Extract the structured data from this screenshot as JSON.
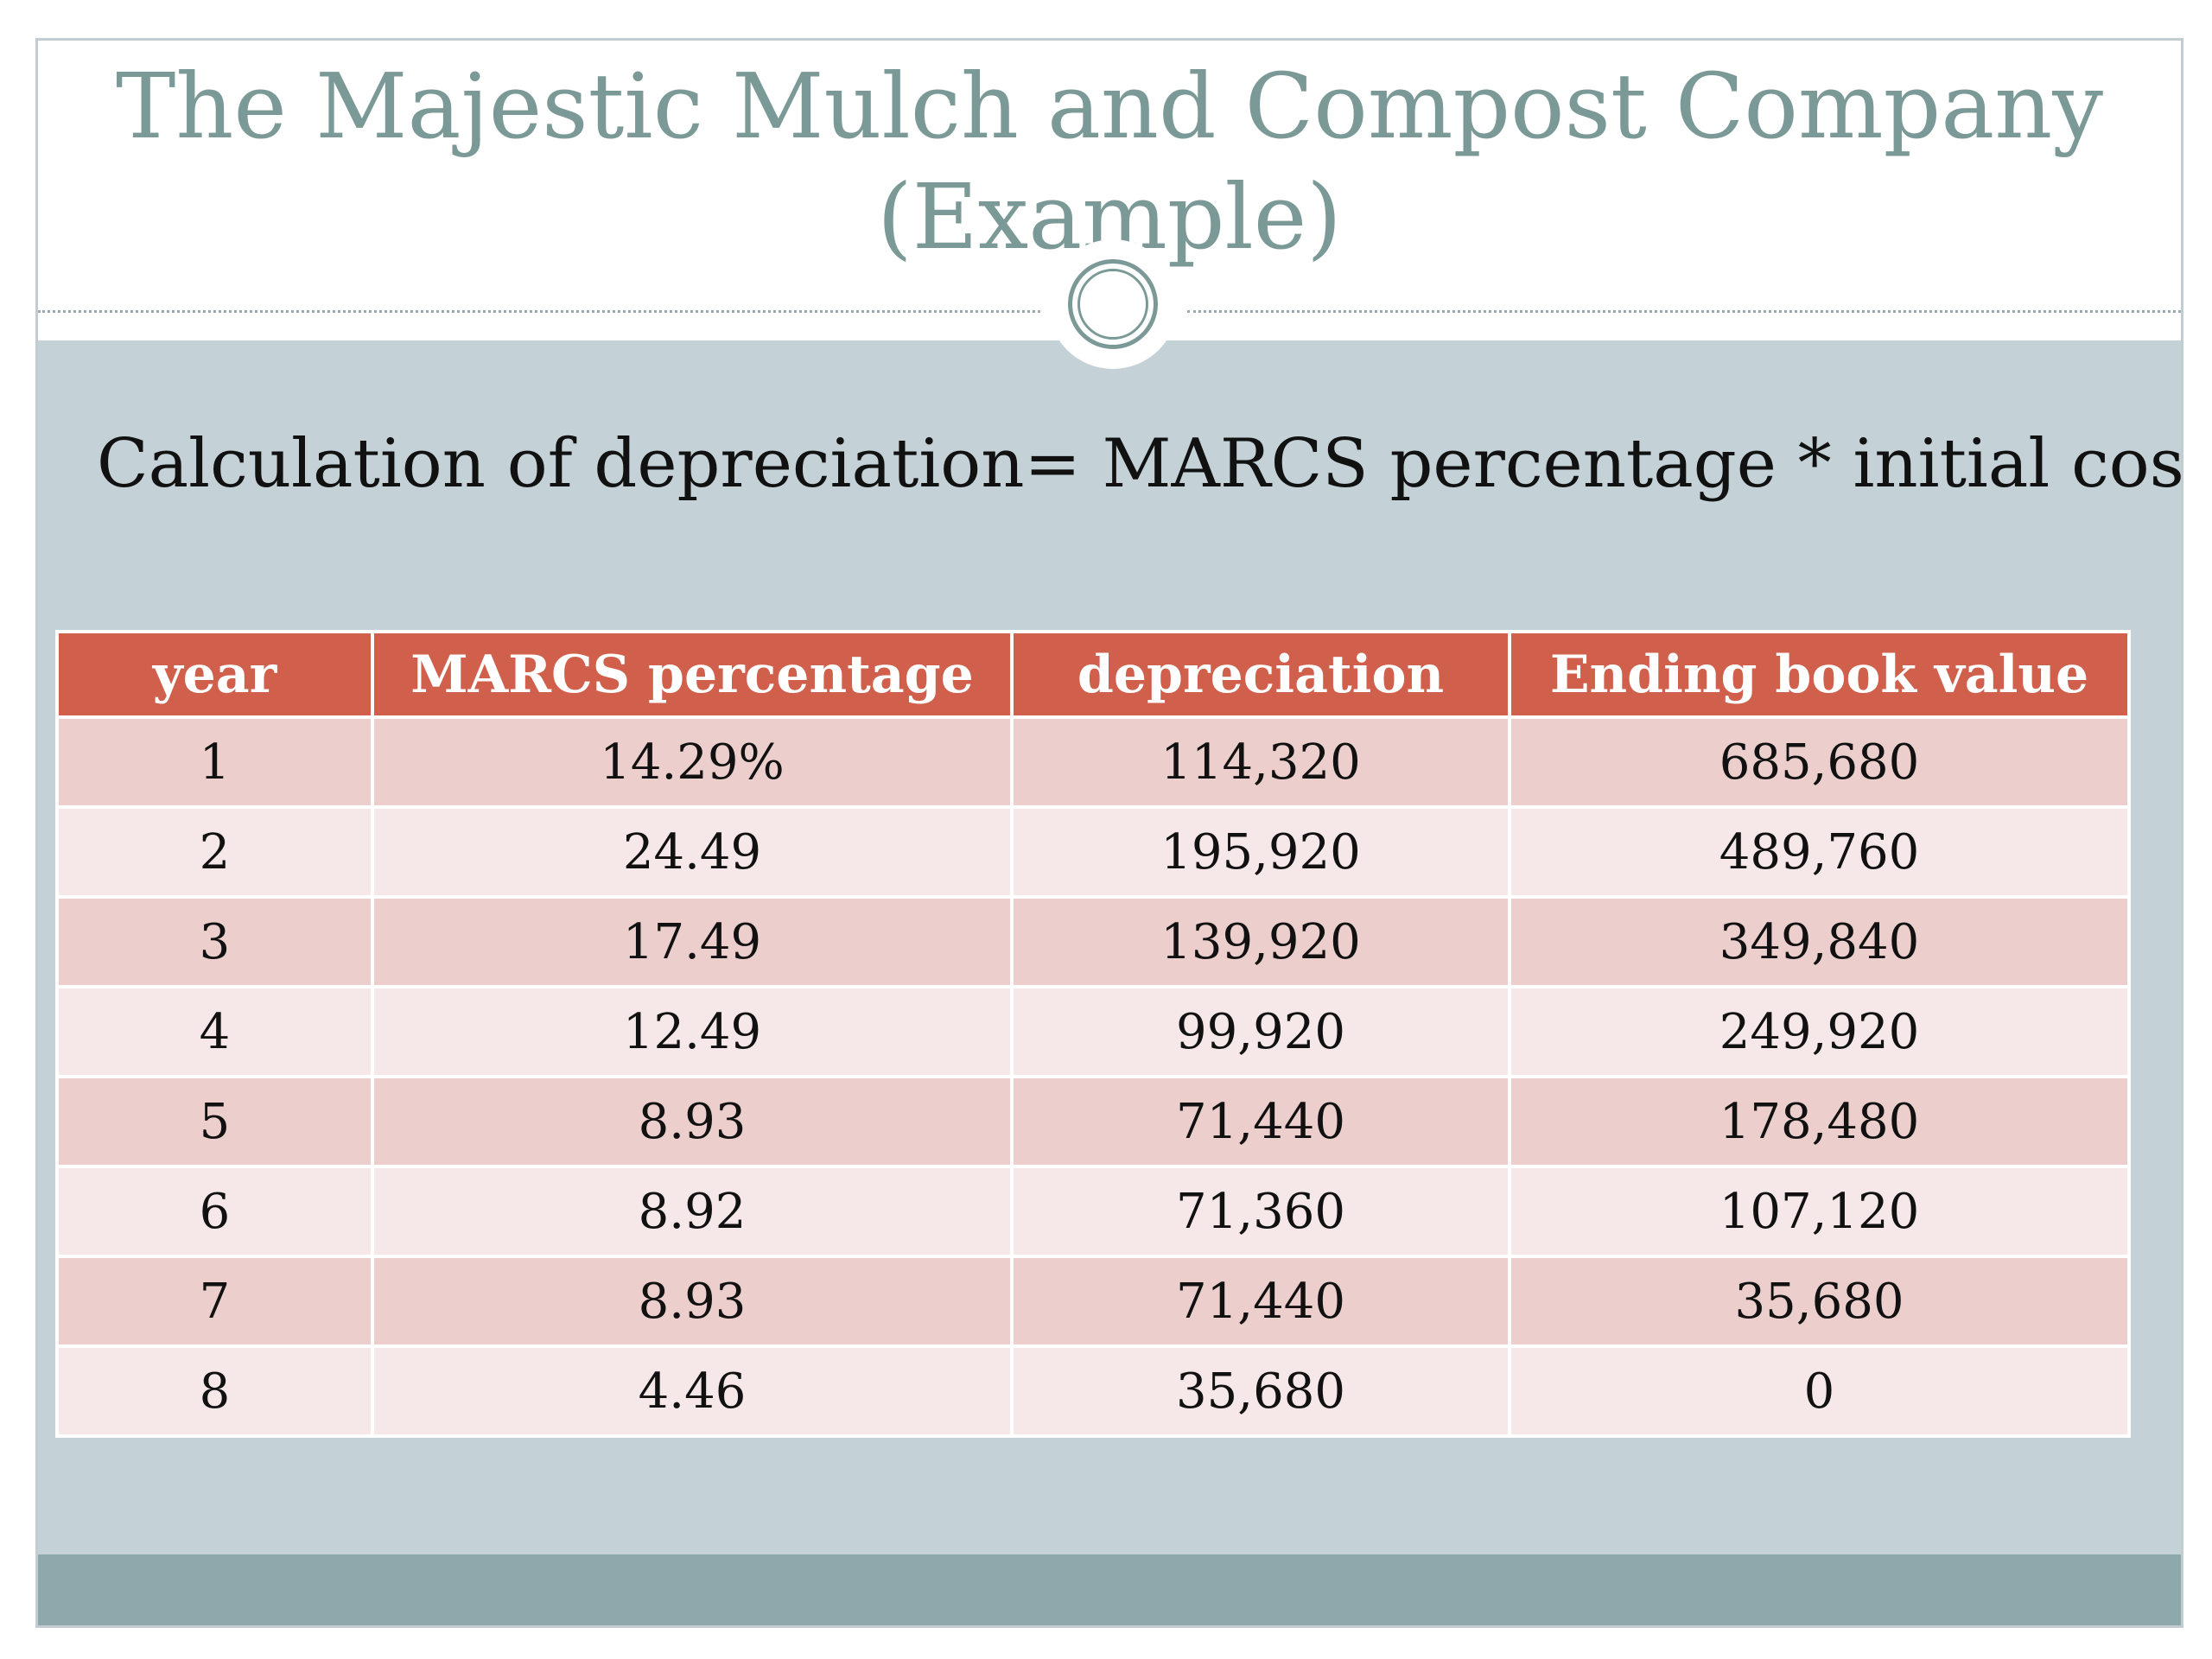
{
  "slide": {
    "title_line1": "The Majestic Mulch and Compost Company",
    "title_line2": "(Example)",
    "formula": "Calculation of depreciation= MARCS percentage * initial cost"
  },
  "table": {
    "headers": [
      "year",
      "MARCS percentage",
      "depreciation",
      "Ending book value"
    ],
    "rows": [
      [
        "1",
        "14.29%",
        "114,320",
        "685,680"
      ],
      [
        "2",
        "24.49",
        "195,920",
        "489,760"
      ],
      [
        "3",
        "17.49",
        "139,920",
        "349,840"
      ],
      [
        "4",
        "12.49",
        "99,920",
        "249,920"
      ],
      [
        "5",
        "8.93",
        "71,440",
        "178,480"
      ],
      [
        "6",
        "8.92",
        "71,360",
        "107,120"
      ],
      [
        "7",
        "8.93",
        "71,440",
        "35,680"
      ],
      [
        "8",
        "4.46",
        "35,680",
        "0"
      ]
    ]
  },
  "colors": {
    "title": "#7b9a97",
    "content_background": "#c4d1d7",
    "footer_band": "#8ea9ab",
    "header_row": "#d0604c",
    "row_odd": "#eccfcd",
    "row_even": "#f6e8e8"
  }
}
